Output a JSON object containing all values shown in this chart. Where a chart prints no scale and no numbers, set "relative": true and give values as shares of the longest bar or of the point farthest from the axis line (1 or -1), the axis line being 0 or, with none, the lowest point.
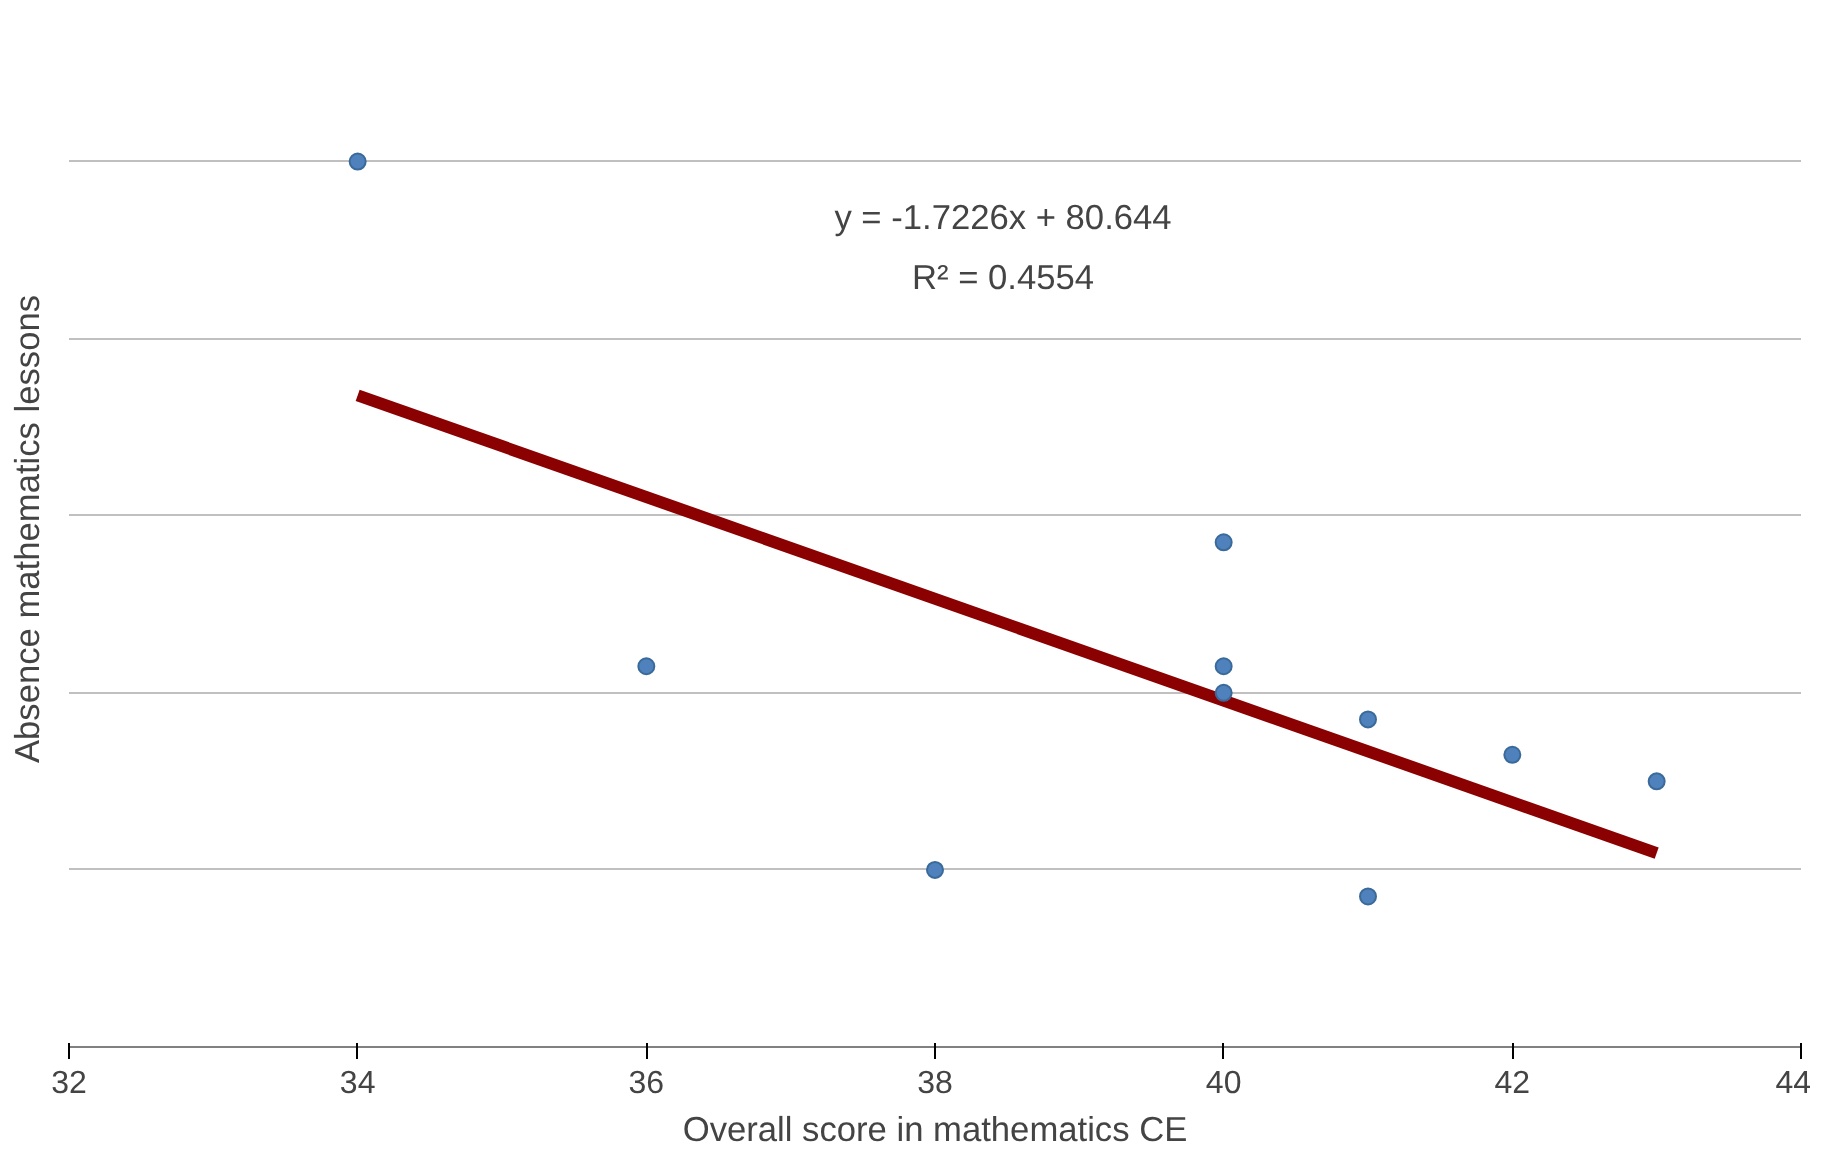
{
  "chart_data": {
    "type": "scatter",
    "xlabel": "Overall score in mathematics CE",
    "ylabel": "Absence mathematics lessons",
    "xlim": [
      32,
      44
    ],
    "xticks": [
      32,
      34,
      36,
      38,
      40,
      42,
      44
    ],
    "relative": true,
    "grid": "y",
    "series": [
      {
        "color": "#4f81bd",
        "marker": "circle",
        "x": [
          34,
          36,
          38,
          40,
          40,
          40,
          41,
          41,
          42,
          43
        ],
        "values": [
          1,
          0.43,
          0.2,
          0.57,
          0.43,
          0.4,
          0.37,
          0.17,
          0.33,
          0.3
        ]
      },
      {
        "type": "line",
        "color": "#8b0000",
        "marker": "none",
        "x": [
          34,
          43
        ],
        "values": [
          0.736,
          0.219
        ]
      }
    ],
    "annotations": [
      "y = -1.7226x + 80.644",
      "R² = 0.4554"
    ]
  }
}
